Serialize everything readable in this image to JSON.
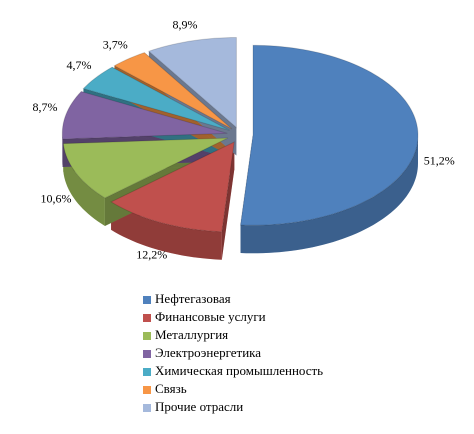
{
  "chart_data": {
    "type": "pie",
    "categories": [
      "Нефтегазовая",
      "Финансовые услуги",
      "Металлургия",
      "Электроэнергетика",
      "Химическая промышленность",
      "Связь",
      "Прочие отрасли"
    ],
    "values": [
      51.2,
      12.2,
      10.6,
      8.7,
      4.7,
      3.7,
      8.9
    ],
    "value_labels": [
      "51,2%",
      "12,2%",
      "10,6%",
      "8,7%",
      "4,7%",
      "3,7%",
      "8,9%"
    ],
    "colors": [
      "#4f81bd",
      "#c0504d",
      "#9bbb59",
      "#8064a2",
      "#4bacc6",
      "#f79646",
      "#a5b9dc"
    ],
    "legend": "bottom"
  }
}
